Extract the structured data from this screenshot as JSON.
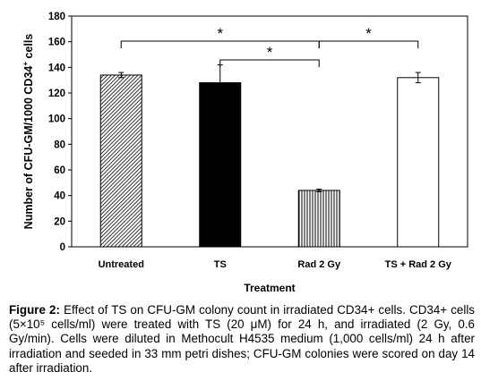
{
  "chart_data": {
    "type": "bar",
    "categories": [
      "Untreated",
      "TS",
      "Rad 2 Gy",
      "TS + Rad 2 Gy"
    ],
    "values": [
      134,
      128,
      44,
      132
    ],
    "errors": [
      2,
      14,
      1,
      4
    ],
    "fills": [
      "hatched",
      "black",
      "vertical-lines",
      "white"
    ],
    "xlabel": "Treatment",
    "ylabel_main": "Number of CFU-GM/1000 CD34",
    "ylabel_sup": "+",
    "ylabel_tail": " cells",
    "ylim": [
      0,
      180
    ],
    "yticks": [
      0,
      20,
      40,
      60,
      80,
      100,
      120,
      140,
      160,
      180
    ],
    "significance": [
      {
        "from": 0,
        "to": 2,
        "label": "*"
      },
      {
        "from": 1,
        "to": 2,
        "label": "*"
      },
      {
        "from": 2,
        "to": 3,
        "label": "*"
      }
    ],
    "grid": false
  },
  "caption": {
    "label": "Figure 2:",
    "text": "Effect of TS on CFU-GM colony count in irradiated CD34+ cells. CD34+ cells (5×10⁵ cells/ml) were treated with TS (20 μM) for 24 h, and irradiated (2 Gy, 0.6 Gy/min). Cells were diluted in Methocult H4535 medium (1,000 cells/ml) 24 h after irradiation and seeded in 33 mm petri dishes; CFU-GM colonies were scored on day 14 after irradiation."
  },
  "colors": {
    "axis": "#000000",
    "black_bar": "#000000",
    "white_bar": "#ffffff"
  }
}
